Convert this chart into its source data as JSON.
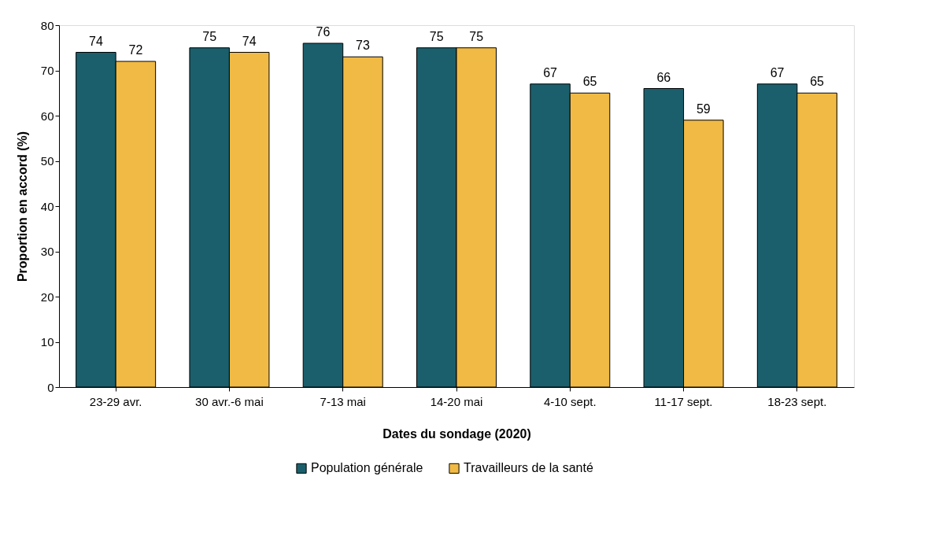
{
  "chart_data": {
    "type": "bar",
    "xlabel": "Dates du sondage (2020)",
    "ylabel": "Proportion en accord (%)",
    "categories": [
      "23-29 avr.",
      "30 avr.-6 mai",
      "7-13 mai",
      "14-20 mai",
      "4-10 sept.",
      "11-17 sept.",
      "18-23 sept."
    ],
    "series": [
      {
        "name": "Population générale",
        "color": "#1b5f6c",
        "values": [
          74,
          75,
          76,
          75,
          67,
          66,
          67
        ]
      },
      {
        "name": "Travailleurs de la santé",
        "color": "#f0ba45",
        "values": [
          72,
          74,
          73,
          75,
          65,
          59,
          65
        ]
      }
    ],
    "ylim": [
      0,
      80
    ],
    "yticks": [
      0,
      10,
      20,
      30,
      40,
      50,
      60,
      70,
      80
    ],
    "grid": false,
    "legend": "bottom",
    "data_labels": true
  }
}
